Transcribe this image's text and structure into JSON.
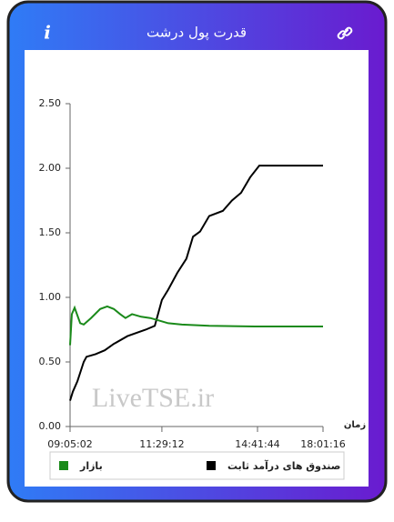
{
  "header": {
    "title": "قدرت پول درشت",
    "info_icon": "i"
  },
  "chart_data": {
    "type": "line",
    "x_label": "زمان",
    "watermark": "LiveTSE.ir",
    "xlim": [
      0,
      100
    ],
    "xticks": [
      {
        "value": 0,
        "label": "09:05:02"
      },
      {
        "value": 36.3,
        "label": "11:29:12"
      },
      {
        "value": 74.1,
        "label": "14:41:44"
      },
      {
        "value": 100,
        "label": "18:01:16"
      }
    ],
    "ylim": [
      0,
      2.5
    ],
    "yticks": [
      {
        "value": 0,
        "label": "0.00"
      },
      {
        "value": 0.5,
        "label": "0.50"
      },
      {
        "value": 1,
        "label": "1.00"
      },
      {
        "value": 1.5,
        "label": "1.50"
      },
      {
        "value": 2,
        "label": "2.00"
      },
      {
        "value": 2.5,
        "label": "2.50"
      }
    ],
    "series": [
      {
        "name": "صندوق های درآمد ثابت",
        "color": "#000000",
        "x": [
          0,
          1.1,
          2.9,
          5.4,
          6.5,
          10.1,
          13.7,
          17.3,
          22.7,
          29.9,
          33.5,
          36.3,
          38.8,
          42.4,
          46.0,
          48.6,
          51.4,
          55.0,
          60.4,
          64.0,
          67.6,
          71.2,
          74.8,
          100
        ],
        "values": [
          0.2,
          0.27,
          0.35,
          0.5,
          0.54,
          0.56,
          0.59,
          0.64,
          0.7,
          0.75,
          0.78,
          0.98,
          1.06,
          1.19,
          1.3,
          1.47,
          1.51,
          1.63,
          1.67,
          1.75,
          1.81,
          1.93,
          2.02,
          2.02
        ]
      },
      {
        "name": "بازار",
        "color": "#1a8a1a",
        "x": [
          0,
          0.7,
          1.8,
          4.0,
          5.4,
          8.3,
          11.9,
          14.7,
          17.3,
          19.8,
          21.9,
          24.5,
          28.1,
          31.7,
          35.3,
          38.8,
          44.2,
          55.0,
          73.0,
          100
        ],
        "values": [
          0.63,
          0.87,
          0.92,
          0.8,
          0.79,
          0.84,
          0.91,
          0.93,
          0.91,
          0.87,
          0.84,
          0.87,
          0.85,
          0.84,
          0.82,
          0.8,
          0.79,
          0.78,
          0.775,
          0.775
        ]
      }
    ]
  }
}
